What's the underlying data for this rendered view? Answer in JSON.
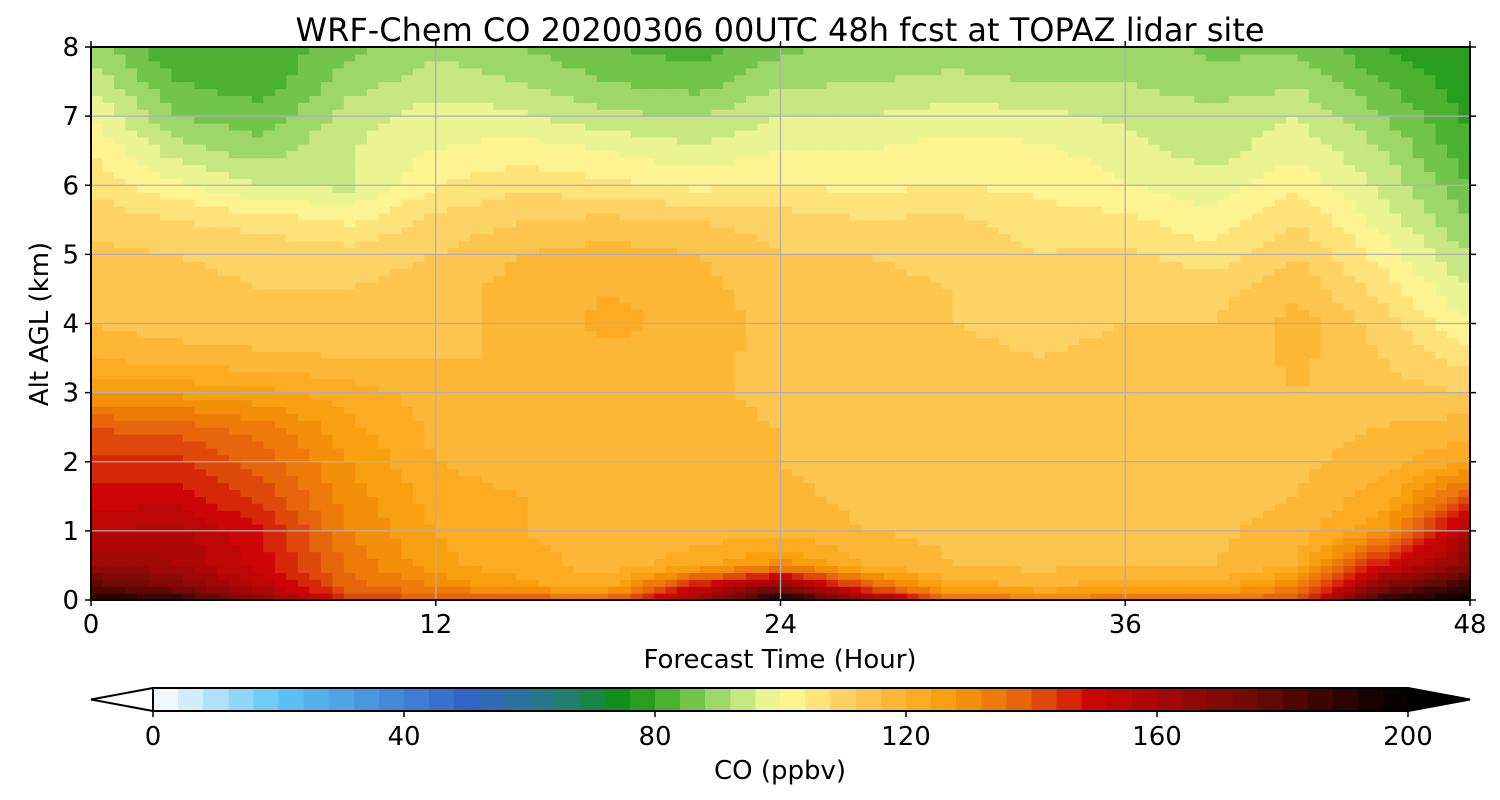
{
  "chart_data": {
    "type": "heatmap",
    "title": "WRF-Chem CO 20200306 00UTC 48h fcst at TOPAZ lidar site",
    "xlabel": "Forecast Time (Hour)",
    "ylabel": "Alt AGL (km)",
    "xlim": [
      0,
      48
    ],
    "ylim": [
      0,
      8
    ],
    "xticks": [
      0,
      12,
      24,
      36,
      48
    ],
    "yticks": [
      0,
      1,
      2,
      3,
      4,
      5,
      6,
      7,
      8
    ],
    "grid": true,
    "field_units": "ppbv",
    "x": [
      0,
      3,
      6,
      9,
      12,
      15,
      18,
      21,
      24,
      27,
      30,
      33,
      36,
      39,
      42,
      45,
      48
    ],
    "y": [
      0,
      0.2,
      0.5,
      1,
      1.5,
      2,
      2.5,
      3,
      3.5,
      4,
      4.5,
      5,
      5.5,
      6,
      6.5,
      7,
      7.5,
      8
    ],
    "values": [
      [
        196,
        190,
        165,
        145,
        140,
        140,
        140,
        160,
        198,
        165,
        138,
        135,
        136,
        136,
        140,
        190,
        200
      ],
      [
        180,
        170,
        155,
        138,
        132,
        125,
        122,
        150,
        170,
        140,
        122,
        120,
        122,
        122,
        132,
        170,
        190
      ],
      [
        165,
        160,
        150,
        135,
        125,
        122,
        118,
        122,
        130,
        120,
        116,
        115,
        116,
        116,
        120,
        150,
        168
      ],
      [
        155,
        158,
        148,
        132,
        124,
        120,
        118,
        118,
        118,
        116,
        115,
        115,
        115,
        115,
        118,
        128,
        160
      ],
      [
        150,
        150,
        142,
        130,
        122,
        120,
        118,
        117,
        117,
        115,
        115,
        114,
        114,
        114,
        116,
        122,
        140
      ],
      [
        145,
        145,
        138,
        128,
        120,
        118,
        118,
        117,
        116,
        114,
        114,
        114,
        113,
        113,
        115,
        118,
        125
      ],
      [
        140,
        138,
        134,
        125,
        119,
        118,
        118,
        117,
        116,
        114,
        114,
        113,
        113,
        113,
        115,
        116,
        118
      ],
      [
        128,
        127,
        125,
        122,
        118,
        117,
        118,
        117,
        115,
        113,
        114,
        112,
        113,
        113,
        116,
        114,
        112
      ],
      [
        120,
        118,
        117,
        116,
        116,
        116,
        119,
        118,
        114,
        113,
        113,
        112,
        113,
        113,
        117,
        112,
        106
      ],
      [
        116,
        114,
        113,
        113,
        115,
        117,
        121,
        119,
        114,
        113,
        112,
        111,
        112,
        112,
        118,
        110,
        100
      ],
      [
        114,
        113,
        112,
        112,
        114,
        118,
        120,
        118,
        113,
        113,
        112,
        110,
        111,
        110,
        115,
        106,
        96
      ],
      [
        113,
        112,
        111,
        110,
        112,
        116,
        118,
        116,
        112,
        112,
        111,
        108,
        109,
        106,
        112,
        102,
        92
      ],
      [
        111,
        108,
        106,
        103,
        109,
        112,
        113,
        112,
        110,
        108,
        109,
        106,
        105,
        101,
        108,
        98,
        88
      ],
      [
        107,
        101,
        96,
        95,
        104,
        107,
        105,
        103,
        104,
        103,
        104,
        103,
        100,
        98,
        103,
        95,
        84
      ],
      [
        104,
        94,
        90,
        96,
        100,
        102,
        100,
        97,
        100,
        100,
        102,
        101,
        98,
        94,
        99,
        92,
        81
      ],
      [
        100,
        88,
        85,
        94,
        98,
        97,
        93,
        92,
        96,
        96,
        98,
        97,
        95,
        93,
        96,
        88,
        79
      ],
      [
        95,
        84,
        82,
        90,
        94,
        92,
        88,
        86,
        91,
        92,
        93,
        92,
        92,
        90,
        91,
        84,
        77
      ],
      [
        90,
        80,
        80,
        87,
        91,
        88,
        84,
        82,
        87,
        89,
        90,
        89,
        90,
        87,
        87,
        80,
        76
      ]
    ],
    "colorbar": {
      "label": "CO  (ppbv)",
      "min": 0,
      "max": 200,
      "extend": "both",
      "ticks": [
        0,
        40,
        80,
        120,
        160,
        200
      ],
      "stops": [
        {
          "v": 0,
          "c": "#ffffff"
        },
        {
          "v": 20,
          "c": "#5fc4f4"
        },
        {
          "v": 50,
          "c": "#3363c7"
        },
        {
          "v": 65,
          "c": "#257c7a"
        },
        {
          "v": 75,
          "c": "#0f9010"
        },
        {
          "v": 84,
          "c": "#5cbb3a"
        },
        {
          "v": 92,
          "c": "#b3e07a"
        },
        {
          "v": 100,
          "c": "#fdfb9a"
        },
        {
          "v": 110,
          "c": "#fed366"
        },
        {
          "v": 120,
          "c": "#fdb02b"
        },
        {
          "v": 128,
          "c": "#f79a08"
        },
        {
          "v": 140,
          "c": "#e45a0c"
        },
        {
          "v": 150,
          "c": "#cc0606"
        },
        {
          "v": 175,
          "c": "#6e0a06"
        },
        {
          "v": 200,
          "c": "#000000"
        }
      ]
    }
  }
}
